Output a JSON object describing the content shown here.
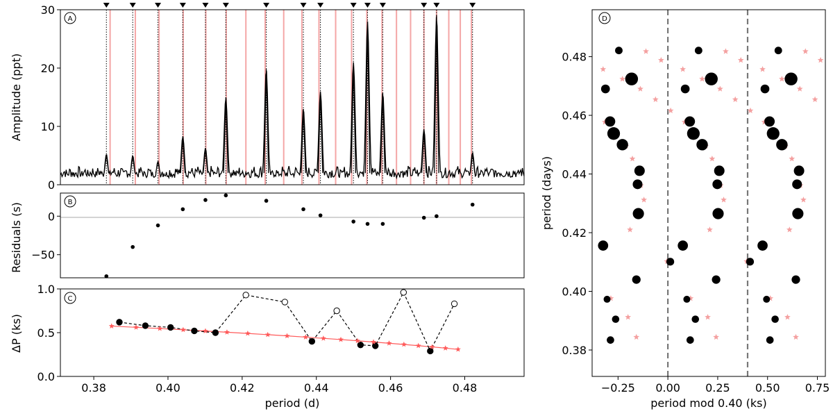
{
  "chart_data": [
    {
      "id": "A",
      "type": "line",
      "panel_label": "A",
      "ylabel": "Amplitude (ppt)",
      "xlim": [
        0.371,
        0.496
      ],
      "ylim": [
        0,
        30
      ],
      "yticks": [
        0,
        10,
        20,
        30
      ],
      "ytick_labels": [
        "0",
        "10",
        "20",
        "30"
      ],
      "observed_periods": [
        0.3834,
        0.3905,
        0.3973,
        0.404,
        0.4101,
        0.4156,
        0.4265,
        0.4365,
        0.4411,
        0.45,
        0.4538,
        0.4579,
        0.469,
        0.4724,
        0.4821
      ],
      "peak_amplitudes": [
        5.2,
        5.0,
        4.0,
        8.3,
        6.3,
        15.0,
        19.8,
        13.0,
        16.0,
        21.0,
        28.0,
        15.8,
        9.5,
        29.0,
        5.5
      ],
      "model_periods": [
        0.3844,
        0.3912,
        0.3976,
        0.4041,
        0.4102,
        0.4157,
        0.421,
        0.4262,
        0.4312,
        0.4361,
        0.4407,
        0.4452,
        0.4495,
        0.4536,
        0.4577,
        0.4616,
        0.4654,
        0.469,
        0.4724,
        0.4757,
        0.4788,
        0.4818
      ]
    },
    {
      "id": "B",
      "type": "scatter",
      "panel_label": "B",
      "ylabel": "Residuals (s)",
      "ylim": [
        -80,
        30
      ],
      "yticks": [
        -50,
        0
      ],
      "ytick_labels": [
        "−50",
        "0"
      ],
      "x": [
        0.3834,
        0.3905,
        0.3973,
        0.404,
        0.4101,
        0.4156,
        0.4265,
        0.4365,
        0.4411,
        0.45,
        0.4538,
        0.4579,
        0.469,
        0.4724,
        0.4821
      ],
      "y": [
        -78,
        -40,
        -12,
        9,
        21,
        27,
        20,
        9,
        1,
        -7,
        -10,
        -10,
        -2,
        0,
        15
      ]
    },
    {
      "id": "C",
      "type": "line",
      "panel_label": "C",
      "ylabel": "ΔP (ks)",
      "xlabel": "period (d)",
      "ylim": [
        0,
        1
      ],
      "yticks": [
        0,
        0.5,
        1
      ],
      "ytick_labels": [
        "0.0",
        "0.5",
        "1.0"
      ],
      "xticks": [
        0.38,
        0.4,
        0.42,
        0.44,
        0.46,
        0.48
      ],
      "xtick_labels": [
        "0.38",
        "0.40",
        "0.42",
        "0.44",
        "0.46",
        "0.48"
      ],
      "series": [
        {
          "name": "observed spacings",
          "x": [
            0.3869,
            0.3939,
            0.4007,
            0.4071,
            0.4128,
            0.421,
            0.4315,
            0.4388,
            0.4455,
            0.4519,
            0.4559,
            0.4635,
            0.4707,
            0.4772
          ],
          "y": [
            0.62,
            0.58,
            0.56,
            0.52,
            0.5,
            0.93,
            0.85,
            0.4,
            0.75,
            0.36,
            0.35,
            0.96,
            0.29,
            0.83
          ],
          "filled": [
            true,
            true,
            true,
            true,
            true,
            false,
            false,
            true,
            false,
            true,
            true,
            false,
            true,
            false
          ]
        },
        {
          "name": "model spacings",
          "x": [
            0.3848,
            0.3914,
            0.3978,
            0.4041,
            0.4101,
            0.4159,
            0.4215,
            0.4269,
            0.4321,
            0.4371,
            0.4419,
            0.4466,
            0.4511,
            0.4554,
            0.4596,
            0.4636,
            0.4675,
            0.4712,
            0.4748,
            0.4782
          ],
          "y": [
            0.575,
            0.561,
            0.547,
            0.533,
            0.519,
            0.505,
            0.491,
            0.477,
            0.463,
            0.449,
            0.435,
            0.421,
            0.407,
            0.393,
            0.379,
            0.365,
            0.351,
            0.337,
            0.323,
            0.309
          ]
        }
      ]
    },
    {
      "id": "D",
      "type": "scatter",
      "panel_label": "D",
      "ylabel": "period (days)",
      "xlabel": "period mod 0.40 (ks)",
      "xlim": [
        -0.38,
        0.79
      ],
      "ylim": [
        0.371,
        0.496
      ],
      "xticks": [
        -0.25,
        0,
        0.25,
        0.5,
        0.75
      ],
      "xtick_labels": [
        "−0.25",
        "0.00",
        "0.25",
        "0.50",
        "0.75"
      ],
      "yticks": [
        0.38,
        0.4,
        0.42,
        0.44,
        0.46,
        0.48
      ],
      "ytick_labels": [
        "0.38",
        "0.40",
        "0.42",
        "0.44",
        "0.46",
        "0.48"
      ],
      "vlines": [
        0,
        0.4
      ],
      "observed": {
        "mod_ks": [
          -0.288,
          -0.262,
          -0.305,
          -0.158,
          0.012,
          -0.325,
          -0.148,
          -0.152,
          -0.142,
          -0.228,
          -0.272,
          -0.29,
          -0.313,
          -0.182,
          -0.246
        ],
        "period_d": [
          0.3834,
          0.3905,
          0.3973,
          0.404,
          0.4101,
          0.4156,
          0.4265,
          0.4365,
          0.4411,
          0.45,
          0.4538,
          0.4579,
          0.469,
          0.4724,
          0.4821
        ],
        "amplitude": [
          5.2,
          5.0,
          4.0,
          8.3,
          6.3,
          15.0,
          19.8,
          13.0,
          16.0,
          21.0,
          28.0,
          15.8,
          9.5,
          29.0,
          5.5
        ]
      },
      "model": {
        "mod_ks": [
          -0.158,
          -0.2,
          -0.286,
          -0.16,
          -0.005,
          -0.312,
          -0.19,
          -0.14,
          -0.12,
          -0.135,
          -0.148,
          -0.178,
          -0.21,
          -0.258,
          -0.316,
          -0.386,
          -0.062,
          -0.138,
          -0.228,
          -0.325,
          -0.034,
          -0.11
        ],
        "period_d": [
          0.3844,
          0.3912,
          0.3976,
          0.4041,
          0.4102,
          0.4157,
          0.421,
          0.4262,
          0.4312,
          0.4361,
          0.4407,
          0.4452,
          0.4495,
          0.4536,
          0.4577,
          0.4616,
          0.4654,
          0.469,
          0.4724,
          0.4757,
          0.4788,
          0.4818
        ]
      }
    }
  ]
}
